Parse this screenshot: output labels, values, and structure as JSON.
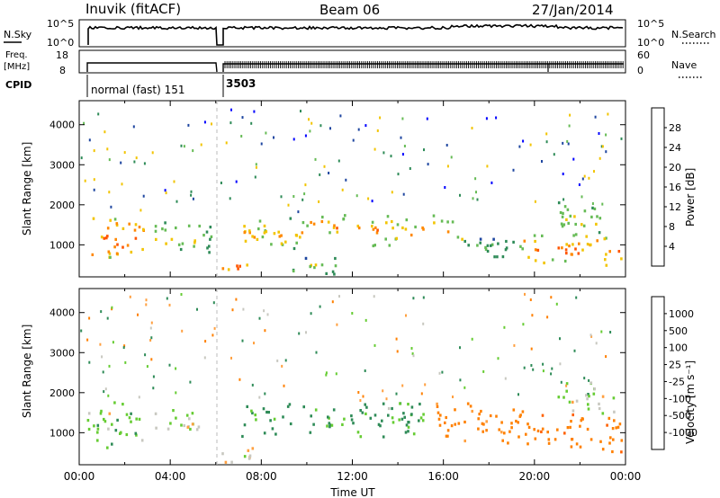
{
  "header": {
    "station": "Inuvik (fitACF)",
    "beam": "Beam 06",
    "date": "27/Jan/2014"
  },
  "side_panels": {
    "nsky_label": "N.Sky",
    "nsky_ticks": [
      "10^5",
      "10^0"
    ],
    "nsearch_label": "N.Search",
    "nsearch_ticks": [
      "10^5",
      "10^0"
    ],
    "freq_label_line1": "Freq.",
    "freq_label_line2": "[MHz]",
    "freq_ticks": [
      "18",
      "8"
    ],
    "nave_label": "Nave",
    "nave_ticks": [
      "60",
      "0"
    ],
    "cpid_label": "CPID",
    "cpid_segments": [
      {
        "label": "normal (fast) 151",
        "start_hour": 0.0,
        "end_hour": 6.05
      },
      {
        "label": "3503",
        "start_hour": 6.05,
        "end_hour": 24.0
      }
    ]
  },
  "colors": {
    "power": [
      "#0000ff",
      "#1e46a0",
      "#2e8b57",
      "#66bb55",
      "#f2c400",
      "#ff8800",
      "#ff5500",
      "#ff0000"
    ],
    "velocity": [
      "#1e3fa8",
      "#2c6ea0",
      "#2e8b57",
      "#66cc33",
      "#c8c8c0",
      "#ffa040",
      "#ff8000",
      "#ff6000",
      "#ff0000"
    ]
  },
  "chart_data": [
    {
      "type": "heatmap",
      "name": "power",
      "ylabel": "Slant Range [km]",
      "yticks": [
        "1000",
        "2000",
        "3000",
        "4000"
      ],
      "xlim": [
        0,
        24
      ],
      "ylim": [
        200,
        4600
      ],
      "colorbar": {
        "label": "Power [dB]",
        "ticks": [
          "4",
          "8",
          "12",
          "16",
          "20",
          "24",
          "28"
        ],
        "range": [
          0,
          32
        ]
      },
      "regions": [
        {
          "t": [
            0.3,
            2.8
          ],
          "r": [
            500,
            1800
          ],
          "peak": 27
        },
        {
          "t": [
            3.3,
            4.2
          ],
          "r": [
            900,
            1600
          ],
          "peak": 20
        },
        {
          "t": [
            4.3,
            5.3
          ],
          "r": [
            900,
            1600
          ],
          "peak": 24
        },
        {
          "t": [
            5.4,
            5.9
          ],
          "r": [
            700,
            1600
          ],
          "peak": 14
        },
        {
          "t": [
            6.2,
            7.6
          ],
          "r": [
            250,
            700
          ],
          "peak": 26
        },
        {
          "t": [
            7.0,
            10.0
          ],
          "r": [
            900,
            1700
          ],
          "peak": 22
        },
        {
          "t": [
            10.0,
            12.5
          ],
          "r": [
            1200,
            1800
          ],
          "peak": 25
        },
        {
          "t": [
            12.8,
            16.8
          ],
          "r": [
            1000,
            1800
          ],
          "peak": 23
        },
        {
          "t": [
            16.5,
            19.5
          ],
          "r": [
            700,
            1200
          ],
          "peak": 14
        },
        {
          "t": [
            19.5,
            23.8
          ],
          "r": [
            500,
            1300
          ],
          "peak": 26
        },
        {
          "t": [
            21.0,
            23.0
          ],
          "r": [
            1200,
            2100
          ],
          "peak": 18
        },
        {
          "t": [
            9.0,
            11.5
          ],
          "r": [
            300,
            700
          ],
          "peak": 16
        }
      ]
    },
    {
      "type": "heatmap",
      "name": "velocity",
      "ylabel": "Slant Range [km]",
      "xlabel": "Time UT",
      "xticks": [
        "00:00",
        "04:00",
        "08:00",
        "12:00",
        "16:00",
        "20:00",
        "00:00"
      ],
      "yticks": [
        "1000",
        "2000",
        "3000",
        "4000"
      ],
      "xlim": [
        0,
        24
      ],
      "ylim": [
        200,
        4600
      ],
      "colorbar": {
        "label": "Velocity [m s⁻¹]",
        "ticks": [
          "1000",
          "500",
          "100",
          "25",
          "-25",
          "-100",
          "-500",
          "-1000"
        ],
        "range": [
          -1000,
          1000
        ]
      },
      "regions": [
        {
          "t": [
            0.3,
            2.8
          ],
          "r": [
            500,
            1800
          ],
          "vel": 60
        },
        {
          "t": [
            3.3,
            5.3
          ],
          "r": [
            900,
            1700
          ],
          "vel": 30
        },
        {
          "t": [
            6.2,
            7.6
          ],
          "r": [
            250,
            700
          ],
          "vel": 10
        },
        {
          "t": [
            7.0,
            15.5
          ],
          "r": [
            900,
            1800
          ],
          "vel": 150
        },
        {
          "t": [
            15.5,
            19.5
          ],
          "r": [
            700,
            1800
          ],
          "vel": -200
        },
        {
          "t": [
            19.5,
            23.8
          ],
          "r": [
            500,
            1500
          ],
          "vel": -350
        },
        {
          "t": [
            21.0,
            23.5
          ],
          "r": [
            1400,
            2300
          ],
          "vel": 40
        }
      ]
    }
  ]
}
